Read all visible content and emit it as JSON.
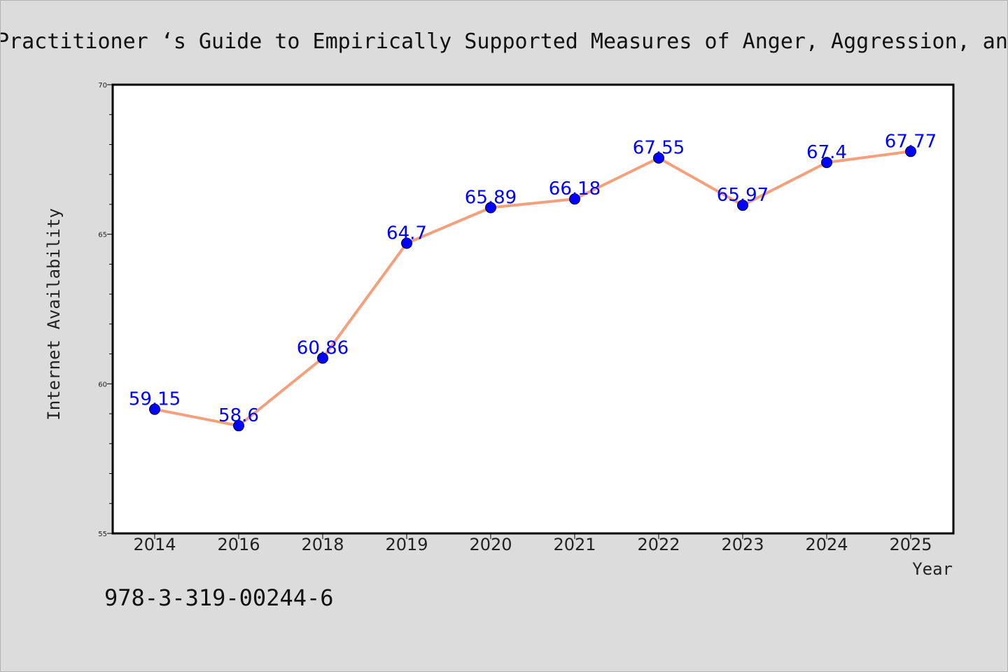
{
  "chart_data": {
    "type": "line",
    "title": "Practitioner ‘s Guide to Empirically Supported Measures of Anger, Aggression, and",
    "xlabel": "Year",
    "ylabel": "Internet Availability",
    "categories": [
      "2014",
      "2016",
      "2018",
      "2019",
      "2020",
      "2021",
      "2022",
      "2023",
      "2024",
      "2025"
    ],
    "series": [
      {
        "values": [
          59.15,
          58.6,
          60.86,
          64.7,
          65.89,
          66.18,
          67.55,
          65.97,
          67.4,
          67.77
        ],
        "labels": [
          "59.15",
          "58.6",
          "60.86",
          "64.7",
          "65.89",
          "66.18",
          "67.55",
          "65.97",
          "67.4",
          "67.77"
        ],
        "line_color": "#f4a07c",
        "marker_color": "#0000ff"
      }
    ],
    "ylim": [
      55,
      70
    ],
    "yticks": [
      "55",
      "60",
      "65",
      "70"
    ],
    "grid": false,
    "legend": "none"
  },
  "footnote": "978-3-319-00244-6",
  "colors": {
    "background": "#dcdcdc",
    "plot_background": "#ffffff",
    "line": "#f4a07c",
    "marker": "#0000ff",
    "data_label": "#0000ff"
  }
}
